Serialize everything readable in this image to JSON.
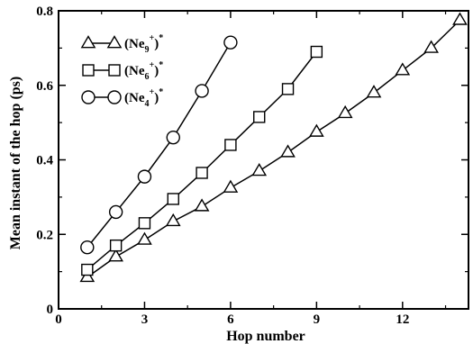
{
  "chart_data": {
    "type": "line",
    "title": "",
    "xlabel": "Hop number",
    "ylabel": "Mean instant of the hop (ps)",
    "xlim": [
      0,
      14.3
    ],
    "ylim": [
      0,
      0.8
    ],
    "xticks": [
      0,
      3,
      6,
      9,
      12
    ],
    "xticks_minor": [
      1.5,
      4.5,
      7.5,
      10.5,
      13.5
    ],
    "yticks": [
      0,
      0.2,
      0.4,
      0.6,
      0.8
    ],
    "yticks_minor": [
      0.1,
      0.3,
      0.5,
      0.7
    ],
    "tick_labels_x": [
      "0",
      "3",
      "6",
      "9",
      "12"
    ],
    "tick_labels_y": [
      "0",
      "0.2",
      "0.4",
      "0.6",
      "0.8"
    ],
    "grid": false,
    "legend_position": "top-left",
    "series": [
      {
        "name": "(Ne9+)*",
        "label_base": "(Ne",
        "label_sub": "9",
        "label_sup": "+",
        "label_close": ")",
        "label_star": "*",
        "marker": "triangle",
        "x": [
          1,
          2,
          3,
          4,
          5,
          6,
          7,
          8,
          9,
          10,
          11,
          12,
          13,
          14
        ],
        "y": [
          0.085,
          0.14,
          0.185,
          0.235,
          0.275,
          0.325,
          0.37,
          0.42,
          0.475,
          0.525,
          0.58,
          0.64,
          0.7,
          0.775
        ]
      },
      {
        "name": "(Ne6+)*",
        "label_base": "(Ne",
        "label_sub": "6",
        "label_sup": "+",
        "label_close": ")",
        "label_star": "*",
        "marker": "square",
        "x": [
          1,
          2,
          3,
          4,
          5,
          6,
          7,
          8,
          9
        ],
        "y": [
          0.105,
          0.17,
          0.23,
          0.295,
          0.365,
          0.44,
          0.515,
          0.59,
          0.69
        ]
      },
      {
        "name": "(Ne4+)*",
        "label_base": "(Ne",
        "label_sub": "4",
        "label_sup": "+",
        "label_close": ")",
        "label_star": "*",
        "marker": "circle",
        "x": [
          1,
          2,
          3,
          4,
          5,
          6
        ],
        "y": [
          0.165,
          0.26,
          0.355,
          0.46,
          0.585,
          0.715
        ]
      }
    ]
  }
}
